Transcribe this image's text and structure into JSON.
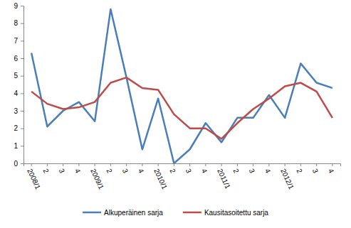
{
  "chart_data": {
    "type": "line",
    "categories": [
      "2008/1",
      "2",
      "3",
      "4",
      "2009/1",
      "2",
      "3",
      "4",
      "2010/1",
      "2",
      "3",
      "4",
      "2011/1",
      "2",
      "3",
      "4",
      "2012/1",
      "2",
      "3",
      "4"
    ],
    "series": [
      {
        "name": "Alkuperäinen sarja",
        "color": "#4a7ebb",
        "values": [
          6.3,
          2.1,
          3.0,
          3.5,
          2.4,
          8.8,
          4.9,
          0.8,
          3.7,
          0.0,
          0.8,
          2.3,
          1.2,
          2.6,
          2.6,
          3.9,
          2.6,
          5.7,
          4.6,
          4.3
        ]
      },
      {
        "name": "Kausitasoitettu sarja",
        "color": "#be4b48",
        "values": [
          4.1,
          3.4,
          3.1,
          3.2,
          3.5,
          4.6,
          4.9,
          4.3,
          4.2,
          2.8,
          2.0,
          2.0,
          1.4,
          2.3,
          3.1,
          3.7,
          4.4,
          4.6,
          4.1,
          2.6
        ]
      }
    ],
    "ylim": [
      0,
      9
    ],
    "yticks": [
      0,
      1,
      2,
      3,
      4,
      5,
      6,
      7,
      8,
      9
    ],
    "grid": false,
    "legend": "bottom"
  }
}
